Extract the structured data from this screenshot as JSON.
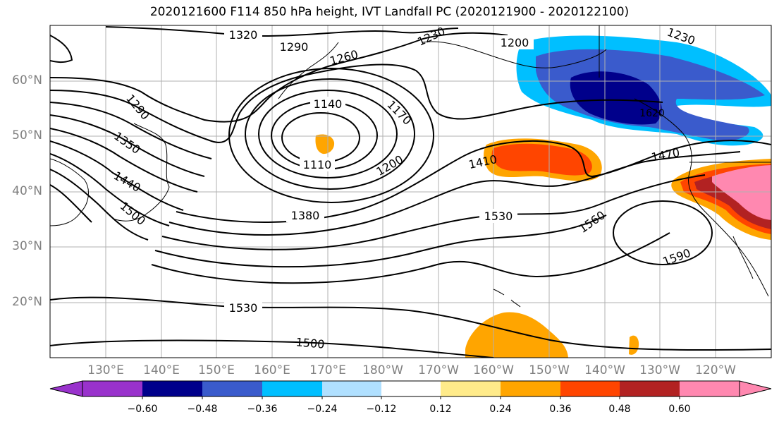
{
  "title": "2020121600 F114 850 hPa height, IVT Landfall PC (2020121900 - 2020122100)",
  "lat_labels": [
    "60°N",
    "50°N",
    "40°N",
    "30°N",
    "20°N"
  ],
  "lon_labels": [
    "130°E",
    "140°E",
    "150°E",
    "160°E",
    "170°E",
    "180°W",
    "170°W",
    "160°W",
    "150°W",
    "140°W",
    "130°W",
    "120°W"
  ],
  "contour_labels": [
    "1320",
    "1290",
    "1260",
    "1230",
    "1200",
    "1230",
    "1290",
    "1350",
    "1440",
    "1500",
    "1140",
    "1170",
    "1110",
    "1200",
    "1410",
    "1380",
    "1530",
    "1560",
    "1590",
    "1470",
    "1530",
    "1500",
    "1620"
  ],
  "colorbar": {
    "ticks": [
      "−0.60",
      "−0.48",
      "−0.36",
      "−0.24",
      "−0.12",
      "0.12",
      "0.24",
      "0.36",
      "0.48",
      "0.60"
    ],
    "colors": [
      "#9932cc",
      "#00008b",
      "#3a5bcc",
      "#00bfff",
      "#b0e0ff",
      "#ffffff",
      "#ffeb8a",
      "#ffa500",
      "#ff4500",
      "#b22222",
      "#ff88b0",
      "#ff88b0"
    ]
  }
}
